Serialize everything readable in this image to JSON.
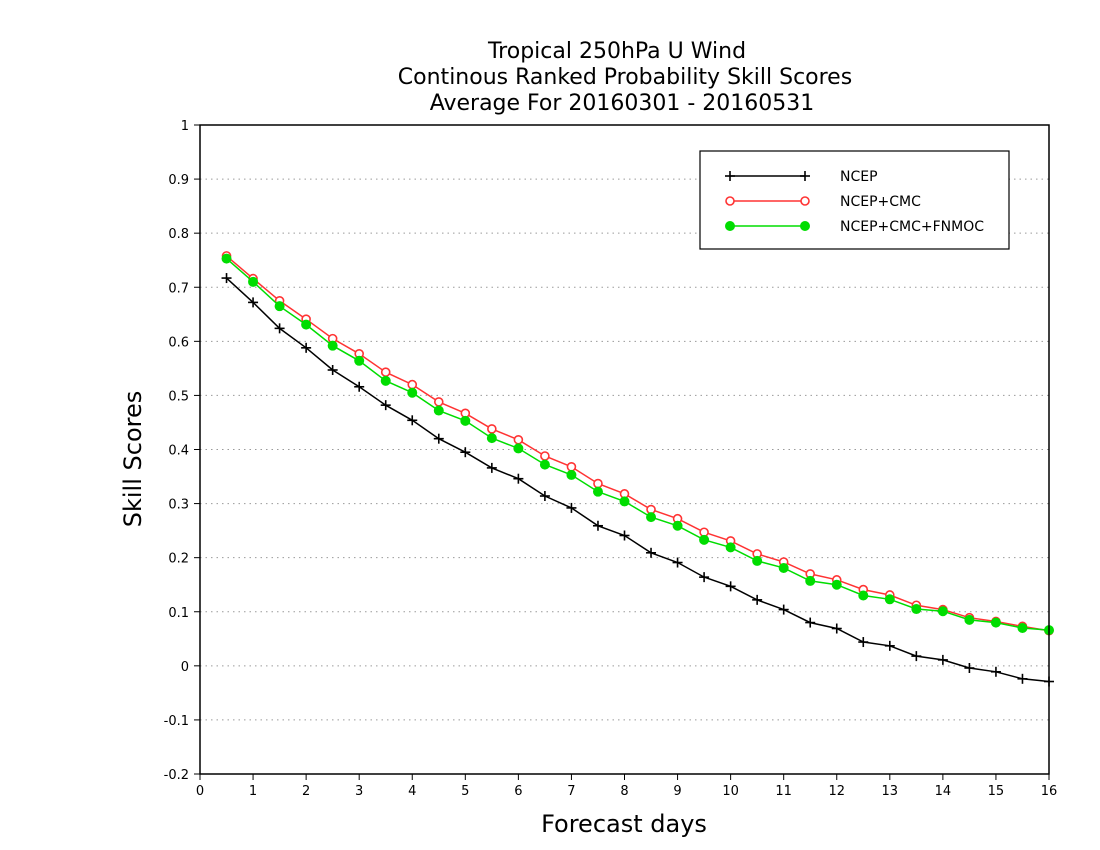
{
  "chart_data": {
    "type": "line",
    "title": [
      "Tropical 250hPa U Wind",
      "Continous Ranked Probability Skill Scores",
      "Average For 20160301 - 20160531"
    ],
    "xlabel": "Forecast days",
    "ylabel": "Skill Scores",
    "xlim": [
      0,
      16
    ],
    "ylim": [
      -0.2,
      1
    ],
    "xticks": [
      0,
      1,
      2,
      3,
      4,
      5,
      6,
      7,
      8,
      9,
      10,
      11,
      12,
      13,
      14,
      15,
      16
    ],
    "yticks": [
      -0.2,
      -0.1,
      0,
      0.1,
      0.2,
      0.3,
      0.4,
      0.5,
      0.6,
      0.7,
      0.8,
      0.9,
      1
    ],
    "ytick_labels": [
      "-0.2",
      "-0.1",
      "0",
      "0.1",
      "0.2",
      "0.3",
      "0.4",
      "0.5",
      "0.6",
      "0.7",
      "0.8",
      "0.9",
      "1"
    ],
    "grid": "horizontal dotted",
    "legend_position": "top-right",
    "x": [
      0.5,
      1,
      1.5,
      2,
      2.5,
      3,
      3.5,
      4,
      4.5,
      5,
      5.5,
      6,
      6.5,
      7,
      7.5,
      8,
      8.5,
      9,
      9.5,
      10,
      10.5,
      11,
      11.5,
      12,
      12.5,
      13,
      13.5,
      14,
      14.5,
      15,
      15.5,
      16
    ],
    "series": [
      {
        "name": "NCEP",
        "color": "#000000",
        "marker": "plus",
        "values": [
          0.717,
          0.672,
          0.624,
          0.588,
          0.547,
          0.516,
          0.482,
          0.454,
          0.42,
          0.395,
          0.366,
          0.346,
          0.314,
          0.292,
          0.259,
          0.241,
          0.209,
          0.191,
          0.164,
          0.147,
          0.122,
          0.104,
          0.08,
          0.069,
          0.044,
          0.037,
          0.018,
          0.011,
          -0.004,
          -0.011,
          -0.024,
          -0.029
        ]
      },
      {
        "name": "NCEP+CMC",
        "color": "#ff3333",
        "marker": "open-circle",
        "values": [
          0.758,
          0.716,
          0.675,
          0.641,
          0.605,
          0.577,
          0.543,
          0.52,
          0.488,
          0.467,
          0.438,
          0.418,
          0.388,
          0.368,
          0.337,
          0.318,
          0.289,
          0.272,
          0.247,
          0.231,
          0.207,
          0.192,
          0.17,
          0.159,
          0.141,
          0.131,
          0.112,
          0.104,
          0.089,
          0.082,
          0.073,
          0.065
        ]
      },
      {
        "name": "NCEP+CMC+FNMOC",
        "color": "#00dd00",
        "marker": "filled-circle",
        "values": [
          0.753,
          0.71,
          0.665,
          0.631,
          0.592,
          0.564,
          0.527,
          0.505,
          0.472,
          0.453,
          0.421,
          0.402,
          0.372,
          0.353,
          0.322,
          0.304,
          0.275,
          0.259,
          0.233,
          0.219,
          0.194,
          0.181,
          0.157,
          0.15,
          0.13,
          0.123,
          0.105,
          0.101,
          0.085,
          0.08,
          0.07,
          0.066
        ]
      }
    ]
  }
}
